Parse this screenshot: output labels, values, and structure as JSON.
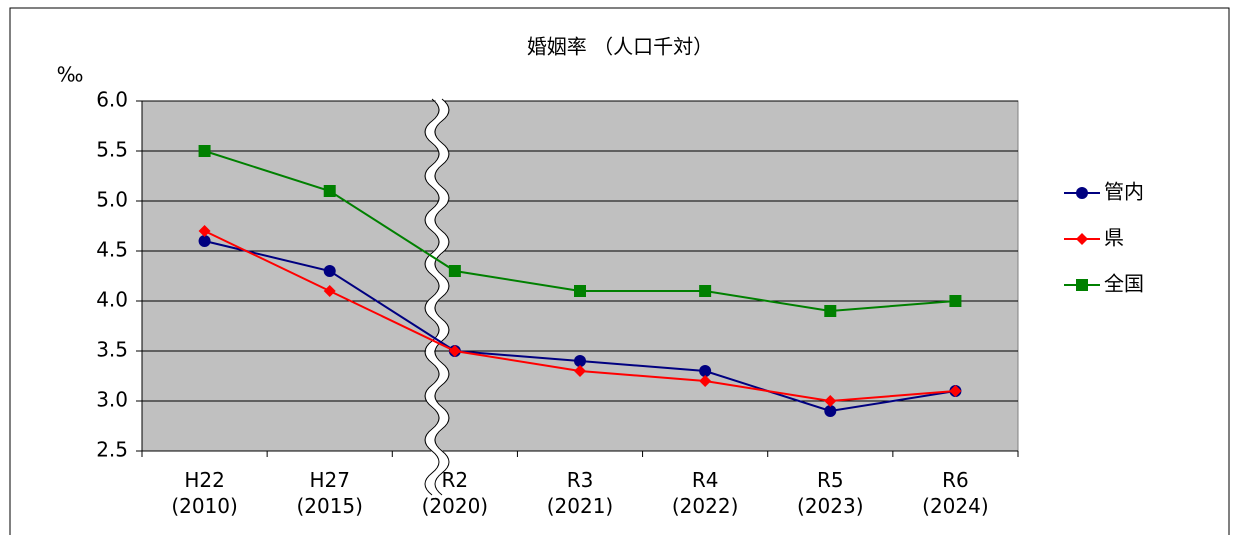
{
  "chart_data": {
    "type": "line",
    "title": "婚姻率 （人口千対）",
    "y_label": "‰",
    "categories": [
      "H22\n(2010)",
      "H27\n(2015)",
      "R2\n(2020)",
      "R3\n(2021)",
      "R4\n(2022)",
      "R5\n(2023)",
      "R6\n(2024)"
    ],
    "series": [
      {
        "name": "管内",
        "color": "#000080",
        "marker": "circle",
        "values": [
          4.6,
          4.3,
          3.5,
          3.4,
          3.3,
          2.9,
          3.1
        ]
      },
      {
        "name": "県",
        "color": "#ff0000",
        "marker": "diamond",
        "values": [
          4.7,
          4.1,
          3.5,
          3.3,
          3.2,
          3.0,
          3.1
        ]
      },
      {
        "name": "全国",
        "color": "#008000",
        "marker": "square",
        "values": [
          5.5,
          5.1,
          4.3,
          4.1,
          4.1,
          3.9,
          4.0
        ]
      }
    ],
    "ylim": [
      2.5,
      6.0
    ],
    "yticks": [
      {
        "value": 2.5,
        "label": "2.5"
      },
      {
        "value": 3.0,
        "label": "3.0"
      },
      {
        "value": 3.5,
        "label": "3.5"
      },
      {
        "value": 4.0,
        "label": "4.0"
      },
      {
        "value": 4.5,
        "label": "4.5"
      },
      {
        "value": 5.0,
        "label": "5.0"
      },
      {
        "value": 5.5,
        "label": "5.5"
      },
      {
        "value": 6.0,
        "label": "6.0"
      }
    ],
    "grid": true,
    "legend": "right",
    "plot_background": "#c0c0c0"
  }
}
